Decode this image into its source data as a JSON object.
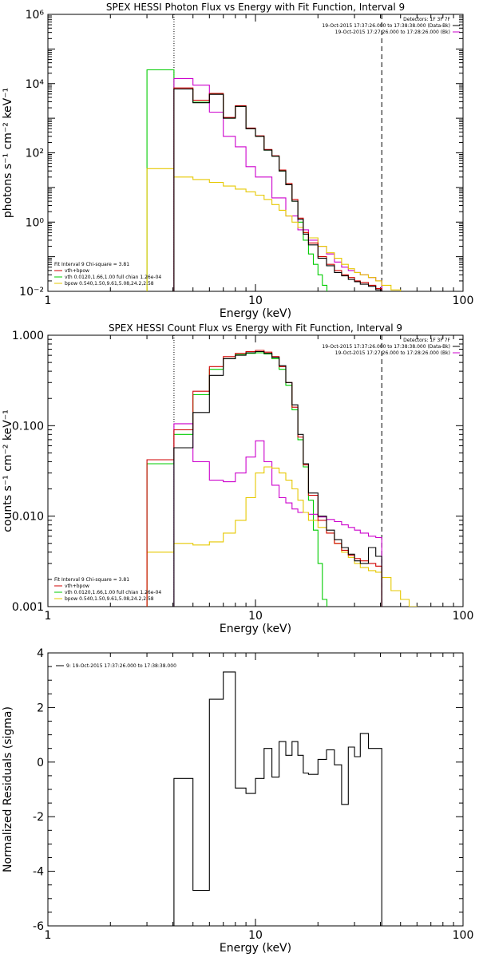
{
  "colors": {
    "data": "#000000",
    "total": "#d00000",
    "vth": "#00cc00",
    "bpow": "#e6c800",
    "background": "#cc00cc"
  },
  "chart_data": [
    {
      "id": "photon",
      "type": "line",
      "title": "SPEX HESSI Photon Flux vs Energy with Fit Function, Interval 9",
      "xlabel": "Energy (keV)",
      "ylabel": "photons s⁻¹ cm⁻² keV⁻¹",
      "xscale": "log",
      "yscale": "log",
      "xlim": [
        1,
        100
      ],
      "ylim": [
        0.01,
        1000000
      ],
      "xticks": [
        {
          "v": 1,
          "label": "1"
        },
        {
          "v": 10,
          "label": "10"
        },
        {
          "v": 100,
          "label": "100"
        }
      ],
      "yticks": [
        {
          "v": 0.01,
          "label": "10⁻²"
        },
        {
          "v": 1,
          "label": "10⁰"
        },
        {
          "v": 100,
          "label": "10²"
        },
        {
          "v": 10000,
          "label": "10⁴"
        },
        {
          "v": 1000000,
          "label": "10⁶"
        }
      ],
      "vlines": [
        {
          "x": 4.05,
          "style": "dotted"
        },
        {
          "x": 40.6,
          "style": "dashed"
        }
      ],
      "legend_tr": [
        {
          "text": "Detectors: 1F 3F 7F",
          "color": "#000000",
          "swatch": false
        },
        {
          "text": "19-Oct-2015 17:37:26.000 to 17:38:38.000 (Data-Bk)",
          "color": "#000000",
          "swatch": true
        },
        {
          "text": "19-Oct-2015 17:27:26.000 to 17:28:26.000 (Bk)",
          "color": "#cc00cc",
          "swatch": true
        }
      ],
      "legend_bl": [
        {
          "text": "Fit Interval 9   Chi-square = 3.81",
          "color": "#000000",
          "swatch": false
        },
        {
          "text": "vth+bpow",
          "color": "#d00000",
          "swatch": true
        },
        {
          "text": "vth 0.0120,1.66,1.00  full chian 1.26e-04",
          "color": "#00cc00",
          "swatch": true
        },
        {
          "text": "bpow 0.540,1.50,9.61,5.08,24.2,2.58",
          "color": "#e6c800",
          "swatch": true
        }
      ],
      "series": [
        {
          "color": "#00cc00",
          "edges": [
            3.0,
            4.05,
            5.0,
            6.0,
            7.0,
            8.0,
            9.0,
            10.0,
            11.0,
            12.0,
            13.0,
            14.0,
            15.0,
            16.0,
            17.0,
            18.0,
            19.0,
            20.0,
            21.0,
            22.1
          ],
          "values": [
            25000,
            7000,
            2900,
            5000,
            1000,
            2200,
            500,
            300,
            120,
            80,
            30,
            12,
            4,
            1,
            0.3,
            0.12,
            0.06,
            0.03,
            0.015
          ]
        },
        {
          "color": "#cc00cc",
          "edges": [
            4.05,
            5.0,
            6.0,
            7.0,
            8.0,
            9.0,
            10.0,
            12.0,
            14.0,
            16.0,
            18.0,
            20.0,
            22.0,
            24.0,
            26.0,
            28.0,
            30.0,
            32.0,
            35.0,
            38.0,
            40.6
          ],
          "values": [
            14000,
            9000,
            1500,
            300,
            150,
            40,
            20,
            5,
            1.5,
            0.6,
            0.3,
            0.2,
            0.12,
            0.07,
            0.05,
            0.04,
            0.035,
            0.03,
            0.025,
            0.02
          ]
        },
        {
          "color": "#e6c800",
          "edges": [
            3.0,
            4.05,
            5.0,
            6.0,
            7.0,
            8.0,
            9.0,
            10.0,
            11.0,
            12.0,
            13.0,
            14.0,
            15.0,
            16.0,
            17.0,
            18.0,
            20.0,
            22.0,
            24.0,
            26.0,
            28.0,
            30.0,
            32.0,
            35.0,
            38.0,
            40.6,
            45.0,
            50.0
          ],
          "values": [
            35,
            20,
            17,
            14,
            11,
            9,
            7.5,
            6,
            4.5,
            3.2,
            2.2,
            1.5,
            1.0,
            0.7,
            0.5,
            0.35,
            0.2,
            0.13,
            0.09,
            0.06,
            0.045,
            0.035,
            0.03,
            0.025,
            0.02,
            0.015,
            0.011
          ]
        },
        {
          "color": "#d00000",
          "edges": [
            4.05,
            5.0,
            6.0,
            7.0,
            8.0,
            9.0,
            10.0,
            11.0,
            12.0,
            13.0,
            14.0,
            15.0,
            16.0,
            17.0,
            18.0,
            20.0,
            22.0,
            24.0,
            26.0,
            28.0,
            30.0,
            32.0,
            35.0,
            38.0,
            40.6
          ],
          "values": [
            7500,
            3300,
            5200,
            1050,
            2300,
            520,
            310,
            125,
            82,
            32,
            13,
            4.5,
            1.3,
            0.5,
            0.25,
            0.1,
            0.06,
            0.04,
            0.03,
            0.025,
            0.02,
            0.018,
            0.015,
            0.012
          ]
        },
        {
          "color": "#000000",
          "edges": [
            4.05,
            5.0,
            6.0,
            7.0,
            8.0,
            9.0,
            10.0,
            11.0,
            12.0,
            13.0,
            14.0,
            15.0,
            16.0,
            17.0,
            18.0,
            20.0,
            22.0,
            24.0,
            26.0,
            28.0,
            30.0,
            32.0,
            35.0,
            38.0,
            40.6
          ],
          "values": [
            7000,
            2800,
            4900,
            1000,
            2200,
            500,
            300,
            120,
            80,
            30,
            12,
            4,
            1.2,
            0.45,
            0.22,
            0.09,
            0.055,
            0.035,
            0.028,
            0.022,
            0.019,
            0.016,
            0.014,
            0.011
          ]
        }
      ]
    },
    {
      "id": "count",
      "type": "line",
      "title": "SPEX HESSI Count Flux vs Energy with Fit Function, Interval 9",
      "xlabel": "Energy (keV)",
      "ylabel": "counts s⁻¹ cm⁻² keV⁻¹",
      "xscale": "log",
      "yscale": "log",
      "xlim": [
        1,
        100
      ],
      "ylim": [
        0.001,
        1.0
      ],
      "xticks": [
        {
          "v": 1,
          "label": "1"
        },
        {
          "v": 10,
          "label": "10"
        },
        {
          "v": 100,
          "label": "100"
        }
      ],
      "yticks": [
        {
          "v": 0.001,
          "label": "0.001"
        },
        {
          "v": 0.01,
          "label": "0.010"
        },
        {
          "v": 0.1,
          "label": "0.100"
        },
        {
          "v": 1.0,
          "label": "1.000"
        }
      ],
      "vlines": [
        {
          "x": 4.05,
          "style": "dotted"
        },
        {
          "x": 40.6,
          "style": "dashed"
        }
      ],
      "legend_tr": [
        {
          "text": "Detectors: 1F 3F 7F",
          "color": "#000000",
          "swatch": false
        },
        {
          "text": "19-Oct-2015 17:37:26.000 to 17:38:38.000 (Data-Bk)",
          "color": "#000000",
          "swatch": true
        },
        {
          "text": "19-Oct-2015 17:27:26.000 to 17:28:26.000 (Bk)",
          "color": "#cc00cc",
          "swatch": true
        }
      ],
      "legend_bl": [
        {
          "text": "Fit Interval 9   Chi-square = 3.81",
          "color": "#000000",
          "swatch": false
        },
        {
          "text": "vth+bpow",
          "color": "#d00000",
          "swatch": true
        },
        {
          "text": "vth 0.0120,1.66,1.00  full chian 1.26e-04",
          "color": "#00cc00",
          "swatch": true
        },
        {
          "text": "bpow 0.540,1.50,9.61,5.08,24.2,2.58",
          "color": "#e6c800",
          "swatch": true
        }
      ],
      "series": [
        {
          "color": "#00cc00",
          "edges": [
            3.0,
            4.05,
            5.0,
            6.0,
            7.0,
            8.0,
            9.0,
            10.0,
            11.0,
            12.0,
            13.0,
            14.0,
            15.0,
            16.0,
            17.0,
            18.0,
            19.0,
            20.0,
            21.0,
            22.1
          ],
          "values": [
            0.038,
            0.08,
            0.22,
            0.42,
            0.55,
            0.61,
            0.63,
            0.64,
            0.62,
            0.55,
            0.42,
            0.28,
            0.15,
            0.07,
            0.035,
            0.015,
            0.007,
            0.003,
            0.0012
          ]
        },
        {
          "color": "#cc00cc",
          "edges": [
            4.05,
            5.0,
            6.0,
            7.0,
            8.0,
            9.0,
            10.0,
            11.0,
            12.0,
            13.0,
            14.0,
            15.0,
            16.0,
            18.0,
            20.0,
            22.0,
            24.0,
            26.0,
            28.0,
            30.0,
            32.0,
            35.0,
            38.0,
            40.6
          ],
          "values": [
            0.105,
            0.04,
            0.025,
            0.024,
            0.03,
            0.045,
            0.068,
            0.04,
            0.022,
            0.016,
            0.014,
            0.012,
            0.011,
            0.0105,
            0.0098,
            0.0092,
            0.0087,
            0.008,
            0.0075,
            0.007,
            0.0065,
            0.006,
            0.0058
          ]
        },
        {
          "color": "#e6c800",
          "edges": [
            3.0,
            4.05,
            5.0,
            6.0,
            7.0,
            8.0,
            9.0,
            10.0,
            11.0,
            12.0,
            13.0,
            14.0,
            15.0,
            16.0,
            17.0,
            18.0,
            20.0,
            22.0,
            24.0,
            26.0,
            28.0,
            30.0,
            32.0,
            35.0,
            38.0,
            40.6,
            45.0,
            50.0,
            55.0,
            60.0
          ],
          "values": [
            0.004,
            0.005,
            0.0048,
            0.0052,
            0.0065,
            0.009,
            0.016,
            0.03,
            0.035,
            0.034,
            0.03,
            0.025,
            0.02,
            0.015,
            0.011,
            0.009,
            0.0075,
            0.0065,
            0.005,
            0.004,
            0.0035,
            0.003,
            0.0027,
            0.0025,
            0.0024,
            0.0021,
            0.0015,
            0.0012,
            0.001
          ]
        },
        {
          "color": "#d00000",
          "edges": [
            3.0,
            4.05,
            5.0,
            6.0,
            7.0,
            8.0,
            9.0,
            10.0,
            11.0,
            12.0,
            13.0,
            14.0,
            15.0,
            16.0,
            17.0,
            18.0,
            20.0,
            22.0,
            24.0,
            26.0,
            28.0,
            30.0,
            32.0,
            35.0,
            38.0,
            40.6
          ],
          "values": [
            0.042,
            0.09,
            0.24,
            0.45,
            0.58,
            0.63,
            0.66,
            0.68,
            0.65,
            0.58,
            0.45,
            0.3,
            0.16,
            0.075,
            0.037,
            0.017,
            0.009,
            0.0065,
            0.005,
            0.0042,
            0.0037,
            0.0034,
            0.0032,
            0.003,
            0.0028
          ]
        },
        {
          "color": "#000000",
          "edges": [
            4.05,
            5.0,
            6.0,
            7.0,
            8.0,
            9.0,
            10.0,
            11.0,
            12.0,
            13.0,
            14.0,
            15.0,
            16.0,
            17.0,
            18.0,
            20.0,
            22.0,
            24.0,
            26.0,
            28.0,
            30.0,
            32.0,
            35.0,
            38.0,
            40.6
          ],
          "values": [
            0.057,
            0.14,
            0.36,
            0.55,
            0.6,
            0.64,
            0.66,
            0.63,
            0.57,
            0.46,
            0.3,
            0.17,
            0.08,
            0.038,
            0.018,
            0.01,
            0.007,
            0.0055,
            0.0045,
            0.0038,
            0.0032,
            0.003,
            0.0045,
            0.0036
          ]
        }
      ]
    },
    {
      "id": "residuals",
      "type": "line",
      "title": "",
      "xlabel": "Energy (keV)",
      "ylabel": "Normalized Residuals (sigma)",
      "xscale": "log",
      "yscale": "linear",
      "xlim": [
        1,
        100
      ],
      "ylim": [
        -6,
        4
      ],
      "xticks": [
        {
          "v": 1,
          "label": "1"
        },
        {
          "v": 10,
          "label": "10"
        },
        {
          "v": 100,
          "label": "100"
        }
      ],
      "yticks": [
        {
          "v": -6,
          "label": "-6"
        },
        {
          "v": -4,
          "label": "-4"
        },
        {
          "v": -2,
          "label": "-2"
        },
        {
          "v": 0,
          "label": "0"
        },
        {
          "v": 2,
          "label": "2"
        },
        {
          "v": 4,
          "label": "4"
        }
      ],
      "vlines": [],
      "legend_tl": [
        {
          "text": "9: 19-Oct-2015 17:37:26.000 to 17:38:38.000",
          "color": "#000000",
          "swatch": true
        }
      ],
      "series": [
        {
          "color": "#000000",
          "edges": [
            4.05,
            5.0,
            6.0,
            7.0,
            8.0,
            9.0,
            10.0,
            11.0,
            12.0,
            13.0,
            14.0,
            15.0,
            16.0,
            17.0,
            18.0,
            20.0,
            22.0,
            24.0,
            26.0,
            28.0,
            30.0,
            32.0,
            35.0,
            38.0,
            40.6
          ],
          "values": [
            -0.6,
            -4.7,
            2.3,
            3.3,
            -0.95,
            -1.15,
            -0.6,
            0.5,
            -0.55,
            0.75,
            0.25,
            0.75,
            0.25,
            -0.4,
            -0.45,
            0.1,
            0.45,
            -0.1,
            -1.55,
            0.55,
            0.2,
            1.05,
            0.5,
            0.5
          ]
        }
      ]
    }
  ]
}
